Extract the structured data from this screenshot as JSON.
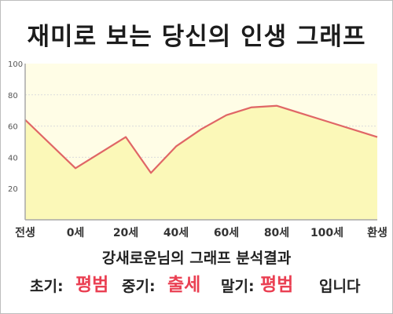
{
  "title": "재미로 보는 당신의 인생 그래프",
  "chart_data": {
    "type": "area",
    "x_labels": [
      "전생",
      "0세",
      "20세",
      "40세",
      "60세",
      "80세",
      "100세",
      "환생"
    ],
    "x": [
      -20,
      0,
      20,
      30,
      40,
      50,
      60,
      70,
      80,
      90,
      100,
      120
    ],
    "y": [
      64,
      33,
      53,
      30,
      47,
      58,
      67,
      72,
      73,
      68,
      63,
      53
    ],
    "ylim": [
      0,
      100
    ],
    "yticks": [
      20,
      40,
      60,
      80,
      100
    ],
    "xlim": [
      -20,
      120
    ],
    "grid": true,
    "line_color": "#e06666",
    "fill_color": "#fbf8b8",
    "plot_background": "#fffde6"
  },
  "summary": {
    "subtitle": "강새로운님의 그래프 분석결과",
    "early_label": "초기:",
    "early_value": "평범",
    "middle_label": "중기:",
    "middle_value": "출세",
    "late_label": "말기:",
    "late_value": "평범",
    "ending": "입니다"
  }
}
